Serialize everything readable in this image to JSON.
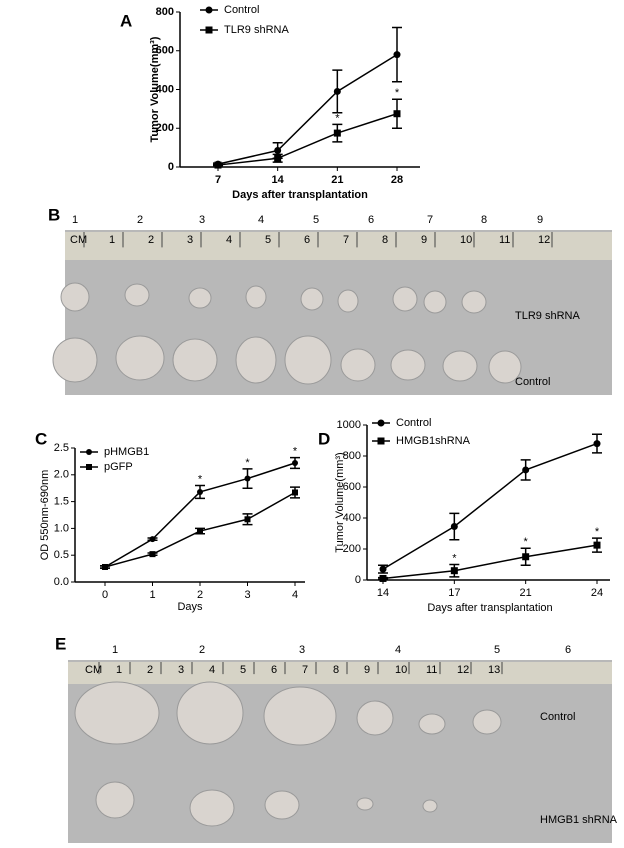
{
  "chart_data": [
    {
      "type": "line",
      "panel": "A",
      "x_label": "Days after transplantation",
      "y_label": "Tumor Volume(mm³)",
      "categories": [
        "7",
        "14",
        "21",
        "28"
      ],
      "ylim": [
        0,
        800
      ],
      "yticks": [
        0,
        200,
        400,
        600,
        800
      ],
      "series": [
        {
          "name": "Control",
          "color": "#000000",
          "marker": "circle",
          "values": [
            15,
            85,
            390,
            580
          ],
          "errors": [
            5,
            40,
            110,
            140
          ],
          "labels": [
            null,
            null,
            null,
            null
          ]
        },
        {
          "name": "TLR9 shRNA",
          "color": "#000000",
          "marker": "square",
          "values": [
            10,
            45,
            175,
            275
          ],
          "errors": [
            3,
            20,
            45,
            75
          ],
          "labels": [
            null,
            null,
            "*",
            "*"
          ]
        }
      ]
    },
    {
      "type": "line",
      "panel": "C",
      "x_label": "Days",
      "y_label": "OD 550nm-690nm",
      "categories": [
        "0",
        "1",
        "2",
        "3",
        "4"
      ],
      "ylim": [
        0,
        2.5
      ],
      "yticks": [
        {
          "value": 0,
          "label": "0.0"
        },
        0.5,
        {
          "value": 1,
          "label": "1.0"
        },
        1.5,
        {
          "value": 2,
          "label": "2.0"
        },
        2.5
      ],
      "series": [
        {
          "name": "pHMGB1",
          "color": "#000000",
          "marker": "circle",
          "values": [
            0.28,
            0.8,
            1.68,
            1.93,
            2.22
          ],
          "errors": [
            0.02,
            0.02,
            0.12,
            0.18,
            0.1
          ],
          "labels": [
            null,
            null,
            "*",
            "*",
            "*"
          ]
        },
        {
          "name": "pGFP",
          "color": "#000000",
          "marker": "square",
          "values": [
            0.28,
            0.52,
            0.95,
            1.17,
            1.67
          ],
          "errors": [
            0.02,
            0.02,
            0.05,
            0.1,
            0.1
          ],
          "labels": [
            null,
            null,
            null,
            null,
            null
          ]
        }
      ]
    },
    {
      "type": "line",
      "panel": "D",
      "x_label": "Days after transplantation",
      "y_label": "Tumor Volume(mm³)",
      "categories": [
        "14",
        "17",
        "21",
        "24"
      ],
      "ylim": [
        0,
        1000
      ],
      "yticks": [
        0,
        200,
        400,
        600,
        800,
        1000
      ],
      "series": [
        {
          "name": "Control",
          "color": "#000000",
          "marker": "circle",
          "values": [
            70,
            345,
            710,
            880
          ],
          "errors": [
            25,
            85,
            65,
            60
          ],
          "labels": [
            null,
            null,
            null,
            null
          ]
        },
        {
          "name": "HMGB1shRNA",
          "color": "#000000",
          "marker": "square",
          "values": [
            10,
            60,
            150,
            225
          ],
          "errors": [
            5,
            40,
            55,
            45
          ],
          "labels": [
            null,
            "*",
            "*",
            "*"
          ]
        }
      ]
    }
  ],
  "photos": [
    {
      "panel": "B",
      "numbers": [
        "1",
        "2",
        "3",
        "4",
        "5",
        "6",
        "7",
        "8",
        "9"
      ],
      "rows": [
        "TLR9 shRNA",
        "Control"
      ],
      "ruler": [
        "CM",
        "1",
        "2",
        "3",
        "4",
        "5",
        "6",
        "7",
        "8",
        "9",
        "10",
        "11",
        "12"
      ]
    },
    {
      "panel": "E",
      "numbers": [
        "1",
        "2",
        "3",
        "4",
        "5",
        "6"
      ],
      "rows": [
        "Control",
        "HMGB1 shRNA"
      ],
      "ruler": [
        "CM",
        "1",
        "2",
        "3",
        "4",
        "5",
        "6",
        "7",
        "8",
        "9",
        "10",
        "11",
        "12",
        "13"
      ]
    }
  ]
}
